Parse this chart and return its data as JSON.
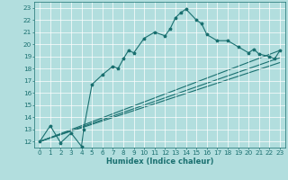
{
  "xlabel": "Humidex (Indice chaleur)",
  "ylabel": "",
  "bg_color": "#b2dede",
  "grid_color": "#ffffff",
  "line_color": "#1a7070",
  "xlim": [
    -0.5,
    23.5
  ],
  "ylim": [
    11.5,
    23.5
  ],
  "xticks": [
    0,
    1,
    2,
    3,
    4,
    5,
    6,
    7,
    8,
    9,
    10,
    11,
    12,
    13,
    14,
    15,
    16,
    17,
    18,
    19,
    20,
    21,
    22,
    23
  ],
  "yticks": [
    12,
    13,
    14,
    15,
    16,
    17,
    18,
    19,
    20,
    21,
    22,
    23
  ],
  "main_curve": [
    [
      0,
      12.0
    ],
    [
      1,
      13.3
    ],
    [
      2,
      11.9
    ],
    [
      3,
      12.7
    ],
    [
      4,
      11.6
    ],
    [
      4.2,
      13.0
    ],
    [
      5,
      16.7
    ],
    [
      6,
      17.5
    ],
    [
      7,
      18.2
    ],
    [
      7.5,
      18.0
    ],
    [
      8,
      18.8
    ],
    [
      8.5,
      19.5
    ],
    [
      9,
      19.3
    ],
    [
      10,
      20.5
    ],
    [
      11,
      21.0
    ],
    [
      12,
      20.7
    ],
    [
      12.5,
      21.3
    ],
    [
      13,
      22.2
    ],
    [
      13.5,
      22.6
    ],
    [
      14,
      22.9
    ],
    [
      15,
      22.0
    ],
    [
      15.5,
      21.7
    ],
    [
      16,
      20.8
    ],
    [
      17,
      20.3
    ],
    [
      18,
      20.3
    ],
    [
      19,
      19.8
    ],
    [
      20,
      19.3
    ],
    [
      20.5,
      19.6
    ],
    [
      21,
      19.2
    ],
    [
      22,
      19.0
    ],
    [
      22.5,
      18.8
    ],
    [
      23,
      19.5
    ]
  ],
  "regression_lines": [
    {
      "x_start": 0,
      "y_start": 12.0,
      "x_end": 23,
      "y_end": 19.5
    },
    {
      "x_start": 0,
      "y_start": 12.0,
      "x_end": 23,
      "y_end": 18.9
    },
    {
      "x_start": 0,
      "y_start": 12.0,
      "x_end": 23,
      "y_end": 18.5
    }
  ],
  "xlabel_fontsize": 6.0,
  "tick_fontsize": 5.2,
  "marker_size": 2.5,
  "line_width": 0.8
}
